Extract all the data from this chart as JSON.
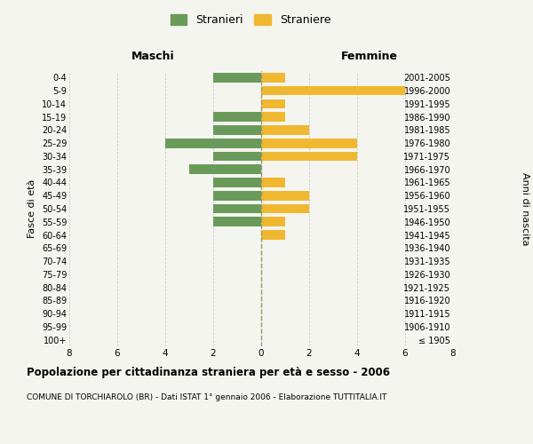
{
  "age_groups": [
    "100+",
    "95-99",
    "90-94",
    "85-89",
    "80-84",
    "75-79",
    "70-74",
    "65-69",
    "60-64",
    "55-59",
    "50-54",
    "45-49",
    "40-44",
    "35-39",
    "30-34",
    "25-29",
    "20-24",
    "15-19",
    "10-14",
    "5-9",
    "0-4"
  ],
  "birth_years": [
    "≤ 1905",
    "1906-1910",
    "1911-1915",
    "1916-1920",
    "1921-1925",
    "1926-1930",
    "1931-1935",
    "1936-1940",
    "1941-1945",
    "1946-1950",
    "1951-1955",
    "1956-1960",
    "1961-1965",
    "1966-1970",
    "1971-1975",
    "1976-1980",
    "1981-1985",
    "1986-1990",
    "1991-1995",
    "1996-2000",
    "2001-2005"
  ],
  "maschi": [
    0,
    0,
    0,
    0,
    0,
    0,
    0,
    0,
    0,
    2,
    2,
    2,
    2,
    3,
    2,
    4,
    2,
    2,
    0,
    0,
    2
  ],
  "femmine": [
    0,
    0,
    0,
    0,
    0,
    0,
    0,
    0,
    1,
    1,
    2,
    2,
    1,
    0,
    4,
    4,
    2,
    1,
    1,
    6,
    1
  ],
  "maschi_color": "#6a9a5a",
  "femmine_color": "#f0b830",
  "bg_color": "#f5f5f0",
  "grid_color": "#cccccc",
  "center_line_color": "#999966",
  "title": "Popolazione per cittadinanza straniera per età e sesso - 2006",
  "subtitle": "COMUNE DI TORCHIAROLO (BR) - Dati ISTAT 1° gennaio 2006 - Elaborazione TUTTITALIA.IT",
  "xlabel_left": "Maschi",
  "xlabel_right": "Femmine",
  "ylabel_left": "Fasce di età",
  "ylabel_right": "Anni di nascita",
  "legend_maschi": "Stranieri",
  "legend_femmine": "Straniere",
  "xlim": 8
}
